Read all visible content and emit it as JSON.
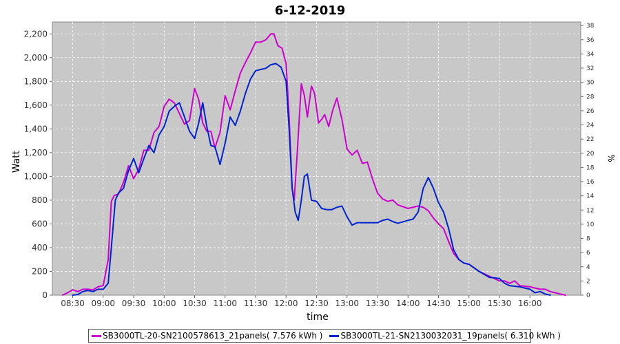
{
  "colors": {
    "background": "#ffffff",
    "plot_bg": "#c8c8c8",
    "grid": "#ffffff",
    "series_1": "#cc00cc",
    "series_2": "#0022cc"
  },
  "chart_data": {
    "type": "line",
    "title": "6-12-2019",
    "xlabel": "time",
    "ylabel": "Watt",
    "y2label": "%",
    "x_range": [
      "08:10",
      "16:50"
    ],
    "x_ticks": [
      "08:30",
      "09:00",
      "09:30",
      "10:00",
      "10:30",
      "11:00",
      "11:30",
      "12:00",
      "12:30",
      "13:00",
      "13:30",
      "14:00",
      "14:30",
      "15:00",
      "15:30",
      "16:00"
    ],
    "ylim": [
      0,
      2300
    ],
    "y_ticks": [
      0,
      200,
      400,
      600,
      800,
      1000,
      1200,
      1400,
      1600,
      1800,
      2000,
      2200
    ],
    "y_tick_labels": [
      "0",
      "200",
      "400",
      "600",
      "800",
      "1,000",
      "1,200",
      "1,400",
      "1,600",
      "1,800",
      "2,000",
      "2,200"
    ],
    "y2lim": [
      0,
      38.5
    ],
    "y2_ticks": [
      0,
      2,
      4,
      6,
      8,
      10,
      12,
      14,
      16,
      18,
      20,
      22,
      24,
      26,
      28,
      30,
      32,
      34,
      36,
      38
    ],
    "grid": true,
    "legend_position": "bottom",
    "series": [
      {
        "name": "SB3000TL-20-SN2100578613_21panels( 7.576 kWh )",
        "color": "#cc00cc",
        "points": [
          [
            "08:20",
            0
          ],
          [
            "08:25",
            20
          ],
          [
            "08:30",
            45
          ],
          [
            "08:35",
            30
          ],
          [
            "08:40",
            50
          ],
          [
            "08:45",
            50
          ],
          [
            "08:50",
            45
          ],
          [
            "08:55",
            70
          ],
          [
            "09:00",
            80
          ],
          [
            "09:05",
            300
          ],
          [
            "09:08",
            790
          ],
          [
            "09:11",
            840
          ],
          [
            "09:15",
            850
          ],
          [
            "09:20",
            950
          ],
          [
            "09:25",
            1090
          ],
          [
            "09:30",
            980
          ],
          [
            "09:35",
            1060
          ],
          [
            "09:40",
            1220
          ],
          [
            "09:45",
            1220
          ],
          [
            "09:50",
            1370
          ],
          [
            "09:55",
            1420
          ],
          [
            "10:00",
            1590
          ],
          [
            "10:05",
            1650
          ],
          [
            "10:10",
            1620
          ],
          [
            "10:15",
            1530
          ],
          [
            "10:20",
            1440
          ],
          [
            "10:25",
            1470
          ],
          [
            "10:30",
            1740
          ],
          [
            "10:34",
            1650
          ],
          [
            "10:38",
            1450
          ],
          [
            "10:42",
            1380
          ],
          [
            "10:46",
            1380
          ],
          [
            "10:50",
            1240
          ],
          [
            "10:55",
            1370
          ],
          [
            "11:00",
            1680
          ],
          [
            "11:05",
            1560
          ],
          [
            "11:10",
            1720
          ],
          [
            "11:15",
            1870
          ],
          [
            "11:20",
            1960
          ],
          [
            "11:25",
            2040
          ],
          [
            "11:30",
            2130
          ],
          [
            "11:35",
            2130
          ],
          [
            "11:40",
            2150
          ],
          [
            "11:45",
            2200
          ],
          [
            "11:48",
            2200
          ],
          [
            "11:52",
            2100
          ],
          [
            "11:56",
            2080
          ],
          [
            "12:00",
            1950
          ],
          [
            "12:03",
            1500
          ],
          [
            "12:06",
            900
          ],
          [
            "12:08",
            800
          ],
          [
            "12:11",
            1200
          ],
          [
            "12:15",
            1780
          ],
          [
            "12:18",
            1680
          ],
          [
            "12:21",
            1500
          ],
          [
            "12:25",
            1760
          ],
          [
            "12:28",
            1700
          ],
          [
            "12:32",
            1450
          ],
          [
            "12:35",
            1480
          ],
          [
            "12:38",
            1520
          ],
          [
            "12:42",
            1420
          ],
          [
            "12:46",
            1560
          ],
          [
            "12:50",
            1660
          ],
          [
            "12:55",
            1480
          ],
          [
            "13:00",
            1230
          ],
          [
            "13:05",
            1180
          ],
          [
            "13:10",
            1220
          ],
          [
            "13:15",
            1110
          ],
          [
            "13:20",
            1120
          ],
          [
            "13:25",
            980
          ],
          [
            "13:30",
            860
          ],
          [
            "13:35",
            810
          ],
          [
            "13:40",
            790
          ],
          [
            "13:45",
            800
          ],
          [
            "13:50",
            760
          ],
          [
            "14:00",
            730
          ],
          [
            "14:10",
            750
          ],
          [
            "14:15",
            740
          ],
          [
            "14:20",
            710
          ],
          [
            "14:25",
            650
          ],
          [
            "14:30",
            600
          ],
          [
            "14:35",
            560
          ],
          [
            "14:40",
            450
          ],
          [
            "14:45",
            350
          ],
          [
            "14:50",
            300
          ],
          [
            "14:55",
            270
          ],
          [
            "15:00",
            260
          ],
          [
            "15:10",
            200
          ],
          [
            "15:20",
            160
          ],
          [
            "15:30",
            120
          ],
          [
            "15:35",
            120
          ],
          [
            "15:40",
            100
          ],
          [
            "15:45",
            120
          ],
          [
            "15:50",
            80
          ],
          [
            "16:00",
            70
          ],
          [
            "16:10",
            50
          ],
          [
            "16:15",
            50
          ],
          [
            "16:20",
            30
          ],
          [
            "16:25",
            20
          ],
          [
            "16:30",
            10
          ],
          [
            "16:35",
            0
          ]
        ]
      },
      {
        "name": "SB3000TL-21-SN2130032031_19panels( 6.310 kWh )",
        "color": "#0022cc",
        "points": [
          [
            "08:30",
            0
          ],
          [
            "08:35",
            5
          ],
          [
            "08:40",
            30
          ],
          [
            "08:45",
            40
          ],
          [
            "08:50",
            30
          ],
          [
            "08:55",
            50
          ],
          [
            "09:00",
            50
          ],
          [
            "09:05",
            100
          ],
          [
            "09:08",
            400
          ],
          [
            "09:12",
            800
          ],
          [
            "09:15",
            860
          ],
          [
            "09:20",
            900
          ],
          [
            "09:25",
            1050
          ],
          [
            "09:30",
            1150
          ],
          [
            "09:35",
            1030
          ],
          [
            "09:40",
            1150
          ],
          [
            "09:45",
            1260
          ],
          [
            "09:50",
            1200
          ],
          [
            "09:55",
            1350
          ],
          [
            "10:00",
            1420
          ],
          [
            "10:05",
            1550
          ],
          [
            "10:10",
            1590
          ],
          [
            "10:15",
            1620
          ],
          [
            "10:20",
            1500
          ],
          [
            "10:25",
            1380
          ],
          [
            "10:30",
            1320
          ],
          [
            "10:34",
            1450
          ],
          [
            "10:38",
            1620
          ],
          [
            "10:42",
            1420
          ],
          [
            "10:46",
            1260
          ],
          [
            "10:50",
            1250
          ],
          [
            "10:55",
            1100
          ],
          [
            "11:00",
            1280
          ],
          [
            "11:05",
            1500
          ],
          [
            "11:10",
            1430
          ],
          [
            "11:15",
            1550
          ],
          [
            "11:20",
            1700
          ],
          [
            "11:25",
            1820
          ],
          [
            "11:30",
            1890
          ],
          [
            "11:35",
            1900
          ],
          [
            "11:40",
            1910
          ],
          [
            "11:45",
            1940
          ],
          [
            "11:50",
            1950
          ],
          [
            "11:55",
            1920
          ],
          [
            "12:00",
            1800
          ],
          [
            "12:03",
            1400
          ],
          [
            "12:06",
            900
          ],
          [
            "12:09",
            700
          ],
          [
            "12:12",
            630
          ],
          [
            "12:15",
            800
          ],
          [
            "12:18",
            1000
          ],
          [
            "12:21",
            1020
          ],
          [
            "12:25",
            800
          ],
          [
            "12:30",
            790
          ],
          [
            "12:35",
            730
          ],
          [
            "12:40",
            720
          ],
          [
            "12:45",
            720
          ],
          [
            "12:50",
            740
          ],
          [
            "12:55",
            750
          ],
          [
            "13:00",
            660
          ],
          [
            "13:05",
            590
          ],
          [
            "13:10",
            610
          ],
          [
            "13:15",
            610
          ],
          [
            "13:20",
            610
          ],
          [
            "13:25",
            610
          ],
          [
            "13:30",
            610
          ],
          [
            "13:35",
            630
          ],
          [
            "13:40",
            640
          ],
          [
            "13:45",
            620
          ],
          [
            "13:50",
            605
          ],
          [
            "14:00",
            630
          ],
          [
            "14:05",
            640
          ],
          [
            "14:10",
            700
          ],
          [
            "14:15",
            900
          ],
          [
            "14:20",
            990
          ],
          [
            "14:25",
            900
          ],
          [
            "14:30",
            780
          ],
          [
            "14:35",
            700
          ],
          [
            "14:40",
            560
          ],
          [
            "14:45",
            380
          ],
          [
            "14:50",
            300
          ],
          [
            "14:55",
            270
          ],
          [
            "15:00",
            260
          ],
          [
            "15:10",
            200
          ],
          [
            "15:20",
            150
          ],
          [
            "15:30",
            140
          ],
          [
            "15:35",
            100
          ],
          [
            "15:40",
            80
          ],
          [
            "15:50",
            70
          ],
          [
            "16:00",
            50
          ],
          [
            "16:05",
            20
          ],
          [
            "16:10",
            30
          ],
          [
            "16:15",
            10
          ],
          [
            "16:20",
            0
          ]
        ]
      }
    ]
  }
}
